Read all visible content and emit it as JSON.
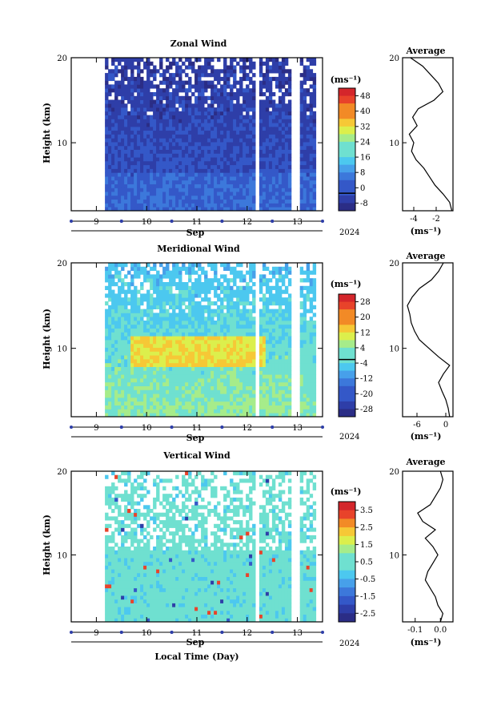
{
  "figure": {
    "x_common_label": "Local Time (Day)",
    "month_label": "Sep",
    "year_label": "2024",
    "colorbar_unit": "(ms⁻¹)",
    "profile_unit": "(ms⁻¹)",
    "profile_title": "Average",
    "colors": {
      "colormap": [
        "#2b2d86",
        "#2e3ea8",
        "#3458c8",
        "#3c78db",
        "#47a0ea",
        "#4cc8ef",
        "#6fe0d0",
        "#a6ec8a",
        "#dcef4c",
        "#f6c836",
        "#f28a26",
        "#e8432a",
        "#d4262b"
      ]
    }
  },
  "chart_data": [
    {
      "type": "heatmap",
      "title": "Zonal Wind",
      "ylabel": "Height (km)",
      "xlabel": "Sep",
      "x_ticks": [
        "9",
        "10",
        "11",
        "12",
        "13"
      ],
      "y_ticks": [
        "10",
        "20"
      ],
      "xlim_day": [
        8.5,
        13.5
      ],
      "ylim_km": [
        2,
        20
      ],
      "colorbar": {
        "ticks": [
          "48",
          "40",
          "32",
          "24",
          "16",
          "8",
          "0",
          "-8"
        ],
        "range": [
          -8,
          48
        ],
        "contour": 0
      },
      "profile": {
        "title": "Average",
        "x_ticks": [
          "-4",
          "-2"
        ],
        "xlim": [
          -5,
          -0.5
        ],
        "height_km": [
          2,
          3,
          4,
          5,
          6,
          7,
          8,
          9,
          10,
          11,
          12,
          13,
          14,
          15,
          16,
          17,
          18,
          19,
          20
        ],
        "values": [
          -0.6,
          -0.8,
          -1.4,
          -2.1,
          -2.6,
          -3.1,
          -3.8,
          -4.2,
          -4.0,
          -4.4,
          -3.7,
          -4.1,
          -3.6,
          -2.2,
          -1.4,
          -1.8,
          -2.5,
          -3.2,
          -4.3
        ]
      }
    },
    {
      "type": "heatmap",
      "title": "Meridional Wind",
      "ylabel": "Height (km)",
      "xlabel": "Sep",
      "x_ticks": [
        "9",
        "10",
        "11",
        "12",
        "13"
      ],
      "y_ticks": [
        "10",
        "20"
      ],
      "xlim_day": [
        8.5,
        13.5
      ],
      "ylim_km": [
        2,
        20
      ],
      "colorbar": {
        "ticks": [
          "28",
          "20",
          "12",
          "4",
          "-4",
          "-12",
          "-20",
          "-28"
        ],
        "range": [
          -28,
          32
        ],
        "contour": 0
      },
      "profile": {
        "title": "Average",
        "x_ticks": [
          "-6",
          "0"
        ],
        "xlim": [
          -9,
          1.5
        ],
        "height_km": [
          2,
          3,
          4,
          5,
          6,
          7,
          8,
          9,
          10,
          11,
          12,
          13,
          14,
          15,
          16,
          17,
          18,
          19,
          20
        ],
        "values": [
          0.8,
          0.5,
          0.0,
          -0.8,
          -1.5,
          -0.5,
          0.8,
          -1.5,
          -3.5,
          -5.5,
          -6.5,
          -7.2,
          -7.5,
          -8.0,
          -7.0,
          -5.5,
          -3.0,
          -1.5,
          -0.5
        ]
      }
    },
    {
      "type": "heatmap",
      "title": "Vertical Wind",
      "ylabel": "Height (km)",
      "xlabel": "Sep",
      "x_ticks": [
        "9",
        "10",
        "11",
        "12",
        "13"
      ],
      "y_ticks": [
        "10",
        "20"
      ],
      "xlim_day": [
        8.5,
        13.5
      ],
      "ylim_km": [
        2,
        20
      ],
      "colorbar": {
        "ticks": [
          "3.5",
          "2.5",
          "1.5",
          "0.5",
          "-0.5",
          "-1.5",
          "-2.5"
        ],
        "range": [
          -3,
          4
        ]
      },
      "profile": {
        "title": "Average",
        "x_ticks": [
          "-0.1",
          "0.0"
        ],
        "xlim": [
          -0.15,
          0.05
        ],
        "height_km": [
          2,
          3,
          4,
          5,
          6,
          7,
          8,
          9,
          10,
          11,
          12,
          13,
          14,
          15,
          16,
          17,
          18,
          19,
          20
        ],
        "values": [
          0.0,
          0.01,
          -0.01,
          -0.02,
          -0.04,
          -0.06,
          -0.05,
          -0.03,
          -0.01,
          -0.03,
          -0.06,
          -0.02,
          -0.07,
          -0.09,
          -0.04,
          -0.02,
          0.0,
          0.01,
          0.0
        ]
      }
    }
  ]
}
